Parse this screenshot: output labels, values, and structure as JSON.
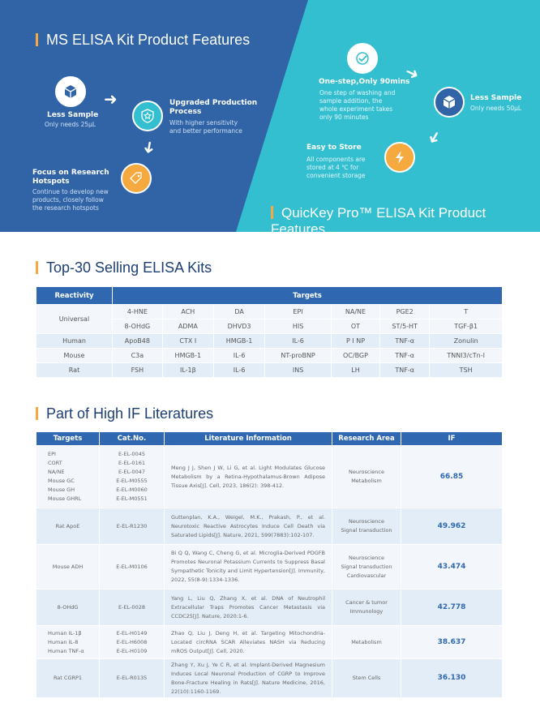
{
  "ms": {
    "title": "MS ELISA Kit Product Features",
    "f1": {
      "title": "Less Sample",
      "desc": "Only needs 25μL"
    },
    "f2": {
      "title": "Upgraded Production Process",
      "desc": "With higher sensitivity and better performance"
    },
    "f3": {
      "title": "Focus on Research Hotspots",
      "desc": "Continue to develop new products, closely follow the research hotspots"
    }
  },
  "qk": {
    "title": "QuicKey Pro™ ELISA Kit Product Features",
    "f1": {
      "title": "One-step,Only 90mins",
      "desc": "One step of washing and sample addition, the whole experiment takes only 90 minutes"
    },
    "f2": {
      "title": "Less Sample",
      "desc": "Only needs 50μL"
    },
    "f3": {
      "title": "Easy to Store",
      "desc": "All components are stored at 4 ℃ for convenient storage"
    }
  },
  "top30": {
    "title": "Top-30 Selling ELISA Kits",
    "headers": [
      "Reactivity",
      "Targets"
    ],
    "rows": [
      {
        "r": "Universal",
        "t": [
          "4-HNE",
          "ACH",
          "DA",
          "EPI",
          "NA/NE",
          "PGE2",
          "T"
        ]
      },
      {
        "r": "",
        "t": [
          "8-OHdG",
          "ADMA",
          "DHVD3",
          "HIS",
          "OT",
          "ST/5-HT",
          "TGF-β1"
        ]
      },
      {
        "r": "Human",
        "t": [
          "ApoB48",
          "CTX I",
          "HMGB-1",
          "IL-6",
          "P I NP",
          "TNF-α",
          "Zonulin"
        ]
      },
      {
        "r": "Mouse",
        "t": [
          "C3a",
          "HMGB-1",
          "IL-6",
          "NT-proBNP",
          "OC/BGP",
          "TNF-α",
          "TNNI3/cTn-I"
        ]
      },
      {
        "r": "Rat",
        "t": [
          "FSH",
          "IL-1β",
          "IL-6",
          "INS",
          "LH",
          "TNF-α",
          "TSH"
        ]
      }
    ]
  },
  "lit": {
    "title": "Part of High IF Literatures",
    "headers": [
      "Targets",
      "Cat.No.",
      "Literature Information",
      "Research Area",
      "IF"
    ],
    "rows": [
      {
        "targets": [
          "EPI",
          "CORT",
          "NA/NE",
          "Mouse GC",
          "Mouse GH",
          "Mouse GHRL"
        ],
        "cat": [
          "E-EL-0045",
          "E-EL-0161",
          "E-EL-0047",
          "E-EL-M0555",
          "E-EL-M0060",
          "E-EL-M0551"
        ],
        "info": "Meng J J, Shen J W, Li G, et al. Light Modulates Glucose Metabolism by a Retina-Hypothalamus-Brown Adipose Tissue Axis[J]. Cell, 2023, 186(2): 398-412.",
        "area": [
          "Neuroscience",
          "Metabolism"
        ],
        "if": "66.85"
      },
      {
        "targets": [
          "Rat ApoE"
        ],
        "cat": [
          "E-EL-R1230"
        ],
        "info": "Guttenplan, K.A., Weigel, M.K., Prakash, P., et al. Neurotoxic Reactive Astrocytes Induce Cell Death via Saturated Lipids[J]. Nature, 2021, 599(7883):102-107.",
        "area": [
          "Neuroscience",
          "Signal transduction"
        ],
        "if": "49.962"
      },
      {
        "targets": [
          "Mouse ADH"
        ],
        "cat": [
          "E-EL-M0106"
        ],
        "info": "Bi Q Q, Wang C, Cheng G, et al. Microglia-Derived PDGFB Promotes Neuronal Potassium Currents to Suppress Basal Sympathetic Tonicity and Limit Hypertension[J]. Immunity, 2022, 55(8-9):1334-1336.",
        "area": [
          "Neuroscience",
          "Signal transduction",
          "Cardiovascular"
        ],
        "if": "43.474"
      },
      {
        "targets": [
          "8-OHdG"
        ],
        "cat": [
          "E-EL-0028"
        ],
        "info": "Yang L, Liu Q, Zhang X, et al. DNA of Neutrophil Extracellular Traps Promotes Cancer Metastasis via CCDC25[J]. Nature, 2020:1-6.",
        "area": [
          "Cancer & tumor",
          "Immunology"
        ],
        "if": "42.778"
      },
      {
        "targets": [
          "Human IL-1β",
          "Human IL-8",
          "Human TNF-α"
        ],
        "cat": [
          "E-EL-H0149",
          "E-EL-H6008",
          "E-EL-H0109"
        ],
        "info": "Zhao Q, Liu J, Deng H, et al. Targeting Mitochondria-Located circRNA SCAR Alleviates NASH via Reducing mROS Output[J]. Cell, 2020.",
        "area": [
          "Metabolism"
        ],
        "if": "38.637"
      },
      {
        "targets": [
          "Rat CGRP1"
        ],
        "cat": [
          "E-EL-R0135"
        ],
        "info": "Zhang Y, Xu J, Ye C R, et al. Implant-Derived Magnesium Induces Local Neuronal Production of CGRP to Improve Bone-Fracture Healing in Rats[J]. Nature Medicine, 2016, 22(10):1160-1169.",
        "area": [
          "Stem Cells"
        ],
        "if": "36.130"
      }
    ]
  }
}
